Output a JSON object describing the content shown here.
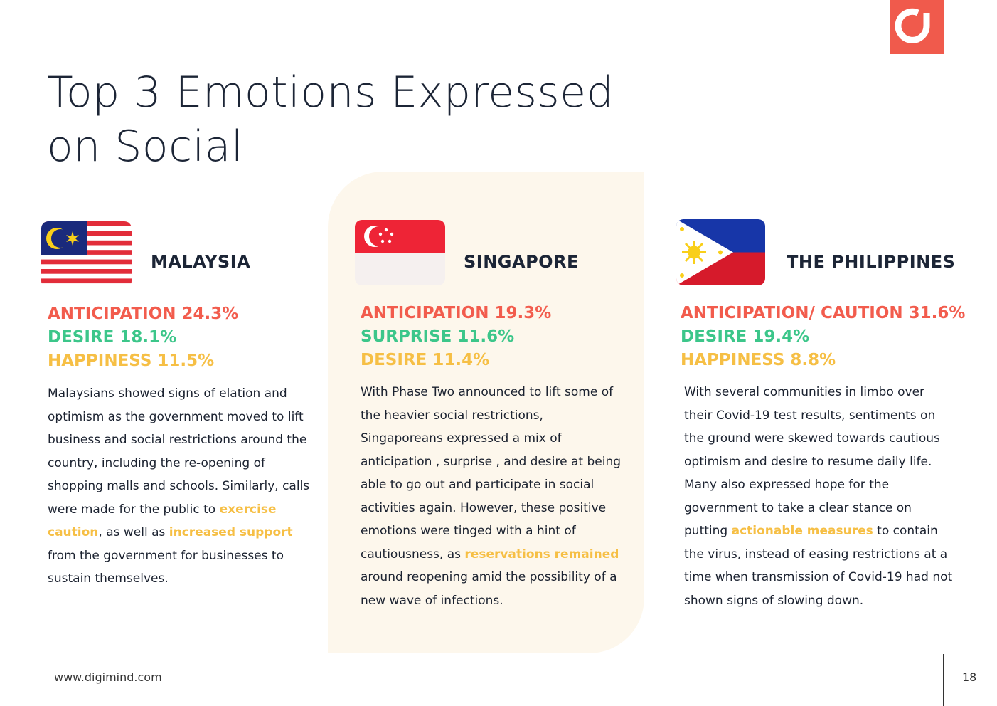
{
  "title_line1": "Top 3 Emotions Expressed",
  "title_line2": "on Social",
  "colors": {
    "anticipation": "#f25c4d",
    "desire": "#3cc68a",
    "happiness": "#f6bf45",
    "panel": "#fdf7ec",
    "logo": "#f05a4c"
  },
  "logo_icon": "digimind-logo-icon",
  "columns": [
    {
      "country": "MALAYSIA",
      "flag_icon": "malaysia-flag-icon",
      "emotions": [
        "ANTICIPATION 24.3%",
        "DESIRE 18.1%",
        "HAPPINESS 11.5%"
      ],
      "text": {
        "p1": "Malaysians showed signs of elation and optimism as the government moved to lift business and social restrictions around the country, including the re-opening of shopping malls and schools. Similarly, calls were made for the public to ",
        "h1": "exercise caution",
        "p2": ", as well as ",
        "h2": "increased support",
        "p3": " from the government for businesses to sustain themselves."
      }
    },
    {
      "country": "SINGAPORE",
      "flag_icon": "singapore-flag-icon",
      "emotions": [
        "ANTICIPATION 19.3%",
        "SURPRISE 11.6%",
        "DESIRE 11.4%"
      ],
      "text": {
        "p1": "With Phase Two announced to lift some of the heavier social restrictions, Singaporeans expressed a mix of anticipation , surprise , and desire  at being able to go out and participate in social activities again. However, these positive emotions were tinged with a hint of cautiousness, as ",
        "h1": "reservations remained",
        "p2": " around reopening amid the possibility of a new wave of infections."
      }
    },
    {
      "country": "THE PHILIPPINES",
      "flag_icon": "philippines-flag-icon",
      "emotions": [
        "ANTICIPATION/ CAUTION 31.6%",
        "DESIRE 19.4%",
        "HAPPINESS 8.8%"
      ],
      "text": {
        "p1": "With several communities in limbo over their Covid-19 test results, sentiments on the ground were skewed towards cautious optimism and desire to resume daily life. Many also expressed hope for the government to  take a clear stance on putting ",
        "h1": "actionable measures",
        "p2": " to contain the virus, instead of easing restrictions at a time when transmission of Covid-19 had not shown signs of slowing down."
      }
    }
  ],
  "footer": {
    "url": "www.digimind.com",
    "page": "18"
  }
}
